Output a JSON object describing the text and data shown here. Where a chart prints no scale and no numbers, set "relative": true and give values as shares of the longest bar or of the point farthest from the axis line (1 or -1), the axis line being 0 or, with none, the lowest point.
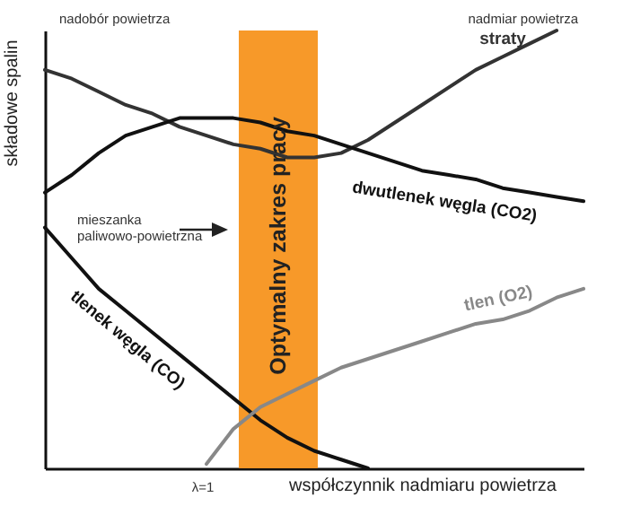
{
  "chart_data": {
    "type": "line",
    "relative": true,
    "xlabel": "współczynnik nadmiaru powietrza",
    "ylabel": "składowe spalin",
    "categories": [
      null,
      null,
      null,
      null,
      null,
      null,
      null,
      null,
      null,
      null,
      null,
      null,
      null,
      null,
      null,
      null,
      null,
      null,
      null,
      null,
      null
    ],
    "series": [
      {
        "name": "straty",
        "color": "#333333",
        "values": [
          0.91,
          0.89,
          0.86,
          0.83,
          0.81,
          0.78,
          0.76,
          0.74,
          0.73,
          0.71,
          0.71,
          0.72,
          0.75,
          0.79,
          0.83,
          0.87,
          0.91,
          0.94,
          0.97,
          1,
          null
        ]
      },
      {
        "name": "dwutlenek węgla (CO2)",
        "color": "#111111",
        "values": [
          0.63,
          0.67,
          0.72,
          0.76,
          0.78,
          0.8,
          0.8,
          0.8,
          0.79,
          0.77,
          0.76,
          0.74,
          0.72,
          0.7,
          0.68,
          0.67,
          0.66,
          0.64,
          0.63,
          0.62,
          0.61
        ]
      },
      {
        "name": "tlenek węgla (CO)",
        "color": "#111111",
        "values": [
          0.55,
          0.48,
          0.41,
          0.36,
          0.31,
          0.26,
          0.21,
          0.16,
          0.11,
          0.07,
          0.04,
          0.02,
          0,
          null,
          null,
          null,
          null,
          null,
          null,
          null,
          null
        ]
      },
      {
        "name": "tlen (O2)",
        "color": "#888888",
        "values": [
          null,
          null,
          null,
          null,
          null,
          null,
          0.01,
          0.09,
          0.14,
          0.17,
          0.2,
          0.23,
          0.25,
          0.27,
          0.29,
          0.31,
          0.33,
          0.34,
          0.36,
          0.39,
          0.41
        ]
      }
    ],
    "annotations": [
      "nadobór powietrza",
      "nadmiar powietrza",
      "mieszanka paliwowo-powietrzna",
      "λ=1",
      "Optymalny zakres pracy"
    ]
  }
}
